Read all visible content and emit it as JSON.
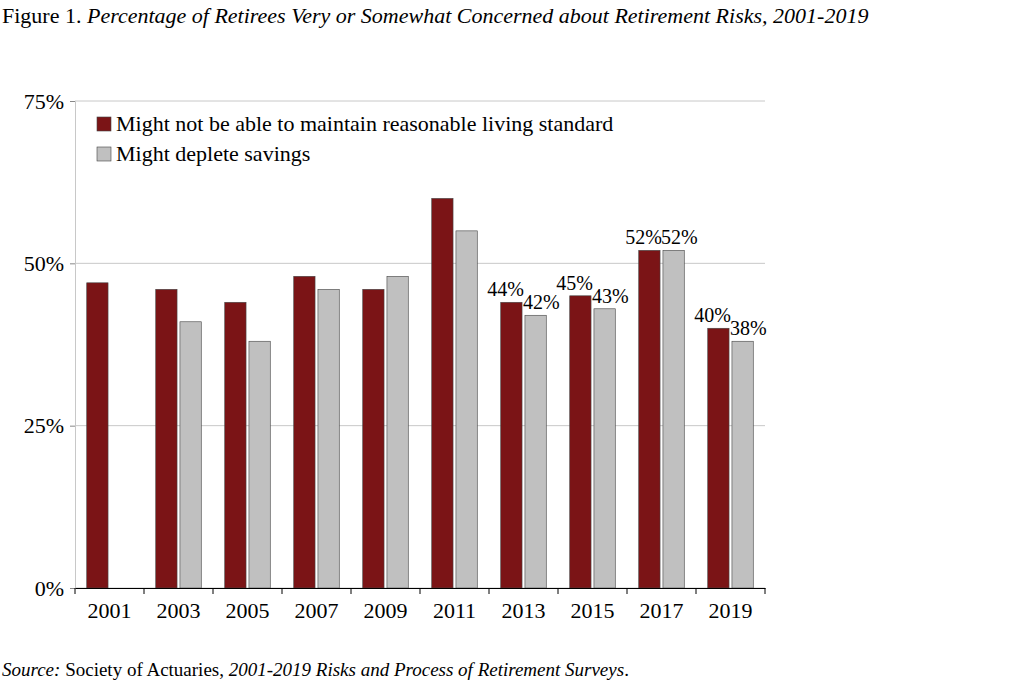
{
  "chart_data": {
    "type": "bar",
    "title": "Figure 1. Percentage of Retirees Very or Somewhat Concerned about Retirement Risks, 2001-2019",
    "source": "Source: Society of Actuaries, 2001-2019 Risks and Process of Retirement Surveys.",
    "categories": [
      "2001",
      "2003",
      "2005",
      "2007",
      "2009",
      "2011",
      "2013",
      "2015",
      "2017",
      "2019"
    ],
    "series": [
      {
        "name": "Might not be able to maintain reasonable living standard",
        "color": "#7b1416",
        "values": [
          47,
          46,
          44,
          48,
          46,
          60,
          44,
          45,
          52,
          40
        ],
        "value_labels": [
          null,
          null,
          null,
          null,
          null,
          null,
          "44%",
          "45%",
          "52%",
          "40%"
        ]
      },
      {
        "name": "Might deplete savings",
        "color": "#c0c0c0",
        "values": [
          null,
          41,
          38,
          46,
          48,
          55,
          42,
          43,
          52,
          38
        ],
        "value_labels": [
          null,
          null,
          null,
          null,
          null,
          null,
          "42%",
          "43%",
          "52%",
          "38%"
        ]
      }
    ],
    "ylim": [
      0,
      75
    ],
    "yticks": [
      {
        "value": 0,
        "label": "0%"
      },
      {
        "value": 25,
        "label": "25%"
      },
      {
        "value": 50,
        "label": "50%"
      },
      {
        "value": 75,
        "label": "75%"
      }
    ],
    "grid": true,
    "legend": "upper left",
    "data_labels": true
  }
}
